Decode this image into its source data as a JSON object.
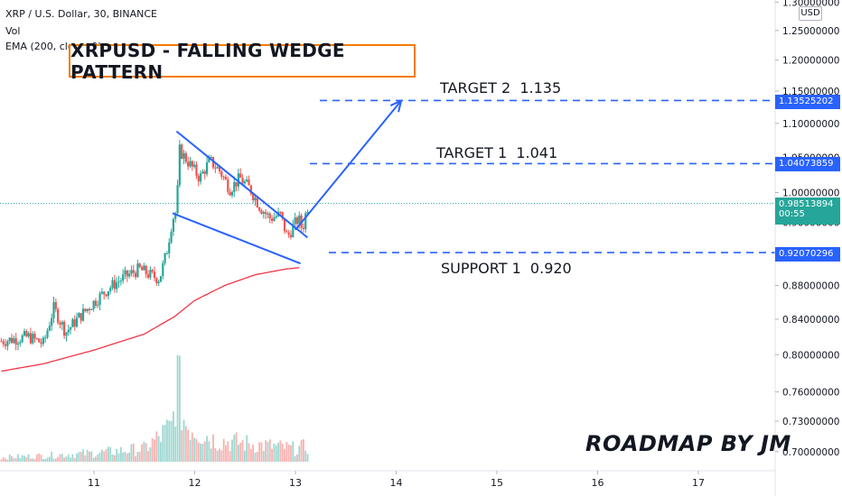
{
  "header": {
    "symbol_line": "XRP / U.S. Dollar, 30, BINANCE",
    "vol_label": "Vol",
    "ema_label": "EMA (200, close, 0)"
  },
  "title": "XRPUSD - FALLING WEDGE PATTERN",
  "annotations": {
    "target2": "TARGET 2  1.135",
    "target1": "TARGET 1  1.041",
    "support1": "SUPPORT 1  0.920"
  },
  "watermark": "ROADMAP BY JM",
  "currency": "USD",
  "price_labels": {
    "target2": "1.13525202",
    "target1": "1.04073859",
    "current": "0.98513894",
    "countdown": "00:55",
    "support1": "0.92070296"
  },
  "colors": {
    "up": "#26a69a",
    "down": "#ef5350",
    "pattern": "#2962ff",
    "ema": "#f23645",
    "title_border": "#f57c00",
    "current_line": "#26a69a"
  },
  "chart_data": {
    "type": "candlestick",
    "symbol": "XRP / U.S. Dollar",
    "interval": "30",
    "exchange": "BINANCE",
    "x_ticks": [
      "11",
      "12",
      "13",
      "14",
      "15",
      "16",
      "17"
    ],
    "x_tick_days": [
      11,
      12,
      13,
      14,
      15,
      16,
      17
    ],
    "x_range_days": [
      10.08,
      17.75
    ],
    "y_ticks": [
      "1.30000000",
      "1.25000000",
      "1.20000000",
      "1.15000000",
      "1.10000000",
      "1.05000000",
      "1.00000000",
      "0.96000000",
      "0.92000000",
      "0.88000000",
      "0.84000000",
      "0.80000000",
      "0.76000000",
      "0.73000000",
      "0.70000000"
    ],
    "y_range": [
      0.68,
      1.3
    ],
    "y_scale": "log",
    "current_price": 0.98513894,
    "levels": [
      {
        "name": "TARGET 2",
        "value": 1.13525202
      },
      {
        "name": "TARGET 1",
        "value": 1.04073859
      },
      {
        "name": "SUPPORT 1",
        "value": 0.92070296
      }
    ],
    "wedge": {
      "upper": [
        [
          11.82,
          1.088
        ],
        [
          13.12,
          0.94
        ]
      ],
      "lower": [
        [
          11.78,
          0.972
        ],
        [
          13.05,
          0.907
        ]
      ]
    },
    "projection": [
      [
        13.0,
        0.95
      ],
      [
        14.05,
        1.135
      ]
    ],
    "ema_points": [
      [
        10.08,
        0.782
      ],
      [
        10.5,
        0.79
      ],
      [
        11.0,
        0.805
      ],
      [
        11.5,
        0.823
      ],
      [
        11.8,
        0.843
      ],
      [
        12.0,
        0.862
      ],
      [
        12.3,
        0.88
      ],
      [
        12.6,
        0.893
      ],
      [
        12.9,
        0.9
      ],
      [
        13.05,
        0.902
      ]
    ],
    "price_path": [
      [
        10.08,
        0.815
      ],
      [
        10.35,
        0.82
      ],
      [
        10.5,
        0.812
      ],
      [
        10.6,
        0.853
      ],
      [
        10.72,
        0.825
      ],
      [
        10.85,
        0.842
      ],
      [
        11.0,
        0.86
      ],
      [
        11.15,
        0.877
      ],
      [
        11.3,
        0.89
      ],
      [
        11.45,
        0.9
      ],
      [
        11.55,
        0.893
      ],
      [
        11.65,
        0.888
      ],
      [
        11.72,
        0.92
      ],
      [
        11.78,
        0.965
      ],
      [
        11.82,
        0.975
      ],
      [
        11.85,
        1.06
      ],
      [
        11.95,
        1.04
      ],
      [
        12.05,
        1.02
      ],
      [
        12.15,
        1.045
      ],
      [
        12.25,
        1.03
      ],
      [
        12.35,
        1.005
      ],
      [
        12.45,
        1.02
      ],
      [
        12.55,
        1.005
      ],
      [
        12.65,
        0.98
      ],
      [
        12.75,
        0.965
      ],
      [
        12.85,
        0.97
      ],
      [
        12.92,
        0.94
      ],
      [
        12.98,
        0.955
      ],
      [
        13.03,
        0.965
      ],
      [
        13.07,
        0.95
      ],
      [
        13.1,
        0.97
      ],
      [
        13.13,
        0.985
      ]
    ],
    "volume_range": [
      0,
      1.0
    ],
    "volume_path": [
      [
        10.08,
        0.05
      ],
      [
        10.5,
        0.07
      ],
      [
        11.0,
        0.1
      ],
      [
        11.5,
        0.15
      ],
      [
        11.78,
        0.4
      ],
      [
        11.82,
        1.0
      ],
      [
        11.9,
        0.45
      ],
      [
        12.2,
        0.25
      ],
      [
        12.6,
        0.2
      ],
      [
        13.0,
        0.15
      ],
      [
        13.13,
        0.18
      ]
    ]
  }
}
